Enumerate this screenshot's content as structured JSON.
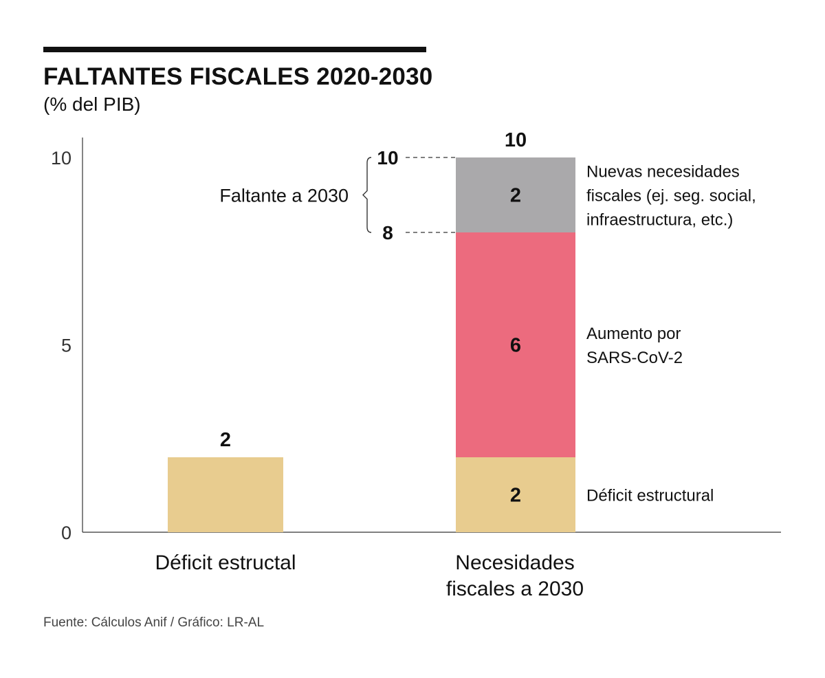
{
  "title": "FALTANTES FISCALES 2020-2030",
  "subtitle": "(% del PIB)",
  "source": "Fuente: Cálculos Anif / Gráfico: LR-AL",
  "chart_data": {
    "type": "bar",
    "stacked": true,
    "title": "FALTANTES FISCALES 2020-2030",
    "ylabel": "(% del PIB)",
    "xlabel": "",
    "ylim": [
      0,
      10
    ],
    "yticks": [
      0,
      5,
      10
    ],
    "grid": false,
    "categories": [
      "Déficit estructal",
      "Necesidades fiscales a 2030"
    ],
    "category_labels": [
      [
        "Déficit estructal"
      ],
      [
        "Necesidades",
        "fiscales a 2030"
      ]
    ],
    "series": [
      {
        "name": "Déficit estructural",
        "values": [
          2,
          2
        ],
        "color": "#e8cc8f"
      },
      {
        "name": "Aumento por SARS-CoV-2",
        "values": [
          0,
          6
        ],
        "color": "#ec6b7e"
      },
      {
        "name": "Nuevas necesidades fiscales (ej. seg. social, infraestructura, etc.)",
        "values": [
          0,
          2
        ],
        "color": "#aaa9ab"
      }
    ],
    "series_labels": [
      [
        "Déficit estructural"
      ],
      [
        "Aumento por",
        "SARS-CoV-2"
      ],
      [
        "Nuevas necesidades",
        "fiscales (ej. seg. social,",
        "infraestructura, etc.)"
      ]
    ],
    "totals": [
      2,
      10
    ],
    "annotation": {
      "label": "Faltante a 2030",
      "from": 8,
      "to": 10,
      "from_label": "8",
      "to_label": "10"
    }
  }
}
